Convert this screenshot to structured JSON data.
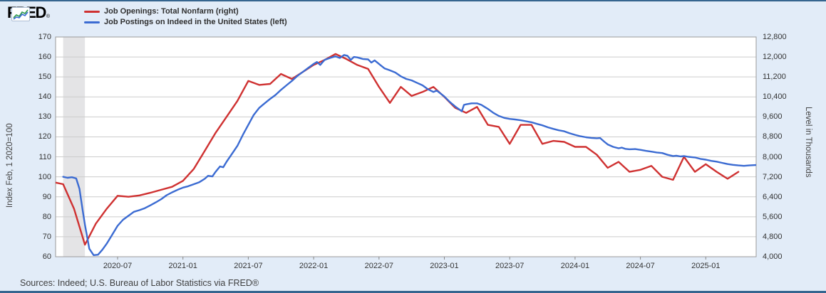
{
  "header": {
    "logo_text": "FRED",
    "logo_reg_mark": "®",
    "legend": [
      {
        "label": "Job Openings: Total Nonfarm (right)",
        "color": "#cf3131"
      },
      {
        "label": "Job Postings on Indeed in the United States (left)",
        "color": "#3b6bd2"
      }
    ]
  },
  "footer": {
    "sources": "Sources: Indeed; U.S. Bureau of Labor Statistics via FRED®"
  },
  "chart_data": {
    "type": "line",
    "left_axis": {
      "title": "Index Feb, 1 2020=100",
      "range": [
        60,
        170
      ],
      "ticks": [
        "170",
        "160",
        "150",
        "140",
        "130",
        "120",
        "110",
        "100",
        "90",
        "80",
        "70",
        "60"
      ]
    },
    "right_axis": {
      "title": "Level in Thousands",
      "range": [
        4000,
        12800
      ],
      "ticks": [
        "12,800",
        "12,000",
        "11,200",
        "10,400",
        "9,600",
        "8,800",
        "8,000",
        "7,200",
        "6,400",
        "5,600",
        "4,800",
        "4,000"
      ]
    },
    "x_axis": {
      "tick_labels": [
        "2020-07",
        "2021-01",
        "2021-07",
        "2022-01",
        "2022-07",
        "2023-01",
        "2023-07",
        "2024-01",
        "2024-07",
        "2025-01"
      ],
      "tick_month_index": [
        6,
        12,
        18,
        24,
        30,
        36,
        42,
        48,
        54,
        60
      ],
      "month_index_note": "month index 0 = 2020-01"
    },
    "recession_band": {
      "start_month_index": 1,
      "end_month_index": 3,
      "color": "#e4e4e6"
    },
    "grid": true,
    "legend_position": "top-left",
    "series": [
      {
        "name": "Job Openings: Total Nonfarm (right)",
        "axis": "right",
        "units": "thousands",
        "color": "#cf3131",
        "data": [
          [
            0,
            7000
          ],
          [
            1,
            6904
          ],
          [
            2,
            5920
          ],
          [
            3,
            4480
          ],
          [
            4,
            5320
          ],
          [
            5,
            5920
          ],
          [
            6,
            6440
          ],
          [
            7,
            6400
          ],
          [
            8,
            6456
          ],
          [
            9,
            6560
          ],
          [
            10,
            6680
          ],
          [
            11,
            6800
          ],
          [
            12,
            7040
          ],
          [
            13,
            7520
          ],
          [
            14,
            8240
          ],
          [
            15,
            8960
          ],
          [
            16,
            9600
          ],
          [
            17,
            10240
          ],
          [
            18,
            11040
          ],
          [
            19,
            10880
          ],
          [
            20,
            10920
          ],
          [
            21,
            11320
          ],
          [
            22,
            11120
          ],
          [
            23,
            11400
          ],
          [
            24,
            11680
          ],
          [
            25,
            11880
          ],
          [
            26,
            12120
          ],
          [
            27,
            11920
          ],
          [
            28,
            11680
          ],
          [
            29,
            11520
          ],
          [
            30,
            10800
          ],
          [
            31,
            10160
          ],
          [
            32,
            10800
          ],
          [
            33,
            10440
          ],
          [
            34,
            10600
          ],
          [
            35,
            10800
          ],
          [
            36,
            10400
          ],
          [
            37,
            9960
          ],
          [
            38,
            9760
          ],
          [
            39,
            10000
          ],
          [
            40,
            9280
          ],
          [
            41,
            9200
          ],
          [
            42,
            8520
          ],
          [
            43,
            9280
          ],
          [
            44,
            9280
          ],
          [
            45,
            8520
          ],
          [
            46,
            8640
          ],
          [
            47,
            8600
          ],
          [
            48,
            8400
          ],
          [
            49,
            8400
          ],
          [
            50,
            8080
          ],
          [
            51,
            7560
          ],
          [
            52,
            7800
          ],
          [
            53,
            7400
          ],
          [
            54,
            7480
          ],
          [
            55,
            7640
          ],
          [
            56,
            7200
          ],
          [
            57,
            7080
          ],
          [
            58,
            8000
          ],
          [
            59,
            7400
          ],
          [
            60,
            7704
          ],
          [
            61,
            7400
          ],
          [
            62,
            7120
          ],
          [
            63,
            7400
          ]
        ]
      },
      {
        "name": "Job Postings on Indeed in the United States (left)",
        "axis": "left",
        "units": "index",
        "color": "#3b6bd2",
        "data": [
          [
            1,
            100
          ],
          [
            1.4,
            99.5
          ],
          [
            1.8,
            99.8
          ],
          [
            2.2,
            99.2
          ],
          [
            2.5,
            94
          ],
          [
            2.8,
            83
          ],
          [
            3,
            76
          ],
          [
            3.4,
            64
          ],
          [
            3.8,
            60.8
          ],
          [
            4.2,
            61
          ],
          [
            4.6,
            63.5
          ],
          [
            5,
            66.5
          ],
          [
            5.5,
            71
          ],
          [
            6,
            75.5
          ],
          [
            6.5,
            78.5
          ],
          [
            7,
            80.5
          ],
          [
            7.5,
            82.5
          ],
          [
            8,
            83.3
          ],
          [
            8.5,
            84.3
          ],
          [
            9,
            85.7
          ],
          [
            9.5,
            87.2
          ],
          [
            10,
            88.8
          ],
          [
            10.5,
            90.8
          ],
          [
            11,
            92.2
          ],
          [
            11.5,
            93.5
          ],
          [
            12,
            94.6
          ],
          [
            12.5,
            95.3
          ],
          [
            13,
            96.3
          ],
          [
            13.5,
            97.3
          ],
          [
            14,
            99
          ],
          [
            14.3,
            100.5
          ],
          [
            14.7,
            100.2
          ],
          [
            15,
            102.5
          ],
          [
            15.4,
            105.2
          ],
          [
            15.7,
            104.8
          ],
          [
            16,
            107.5
          ],
          [
            16.5,
            111.5
          ],
          [
            17,
            115.5
          ],
          [
            17.5,
            121
          ],
          [
            18,
            126
          ],
          [
            18.5,
            131
          ],
          [
            19,
            134.5
          ],
          [
            19.5,
            136.8
          ],
          [
            20,
            139
          ],
          [
            20.5,
            141
          ],
          [
            21,
            143.5
          ],
          [
            21.5,
            145.8
          ],
          [
            22,
            148
          ],
          [
            22.5,
            150.5
          ],
          [
            23,
            152.5
          ],
          [
            23.5,
            154.5
          ],
          [
            24,
            156.5
          ],
          [
            24.3,
            157.5
          ],
          [
            24.6,
            156
          ],
          [
            25,
            158.5
          ],
          [
            25.5,
            159.5
          ],
          [
            26,
            160.3
          ],
          [
            26.4,
            159.5
          ],
          [
            26.8,
            161
          ],
          [
            27.1,
            160.6
          ],
          [
            27.4,
            158.5
          ],
          [
            27.7,
            160
          ],
          [
            28,
            159.8
          ],
          [
            28.5,
            159
          ],
          [
            29,
            158.8
          ],
          [
            29.3,
            157.2
          ],
          [
            29.6,
            158.3
          ],
          [
            30,
            156.5
          ],
          [
            30.5,
            154.3
          ],
          [
            31,
            153.3
          ],
          [
            31.5,
            152.2
          ],
          [
            32,
            150.3
          ],
          [
            32.5,
            149
          ],
          [
            33,
            148.3
          ],
          [
            33.5,
            147
          ],
          [
            34,
            145.8
          ],
          [
            34.5,
            143.8
          ],
          [
            35,
            142.5
          ],
          [
            35.3,
            143.2
          ],
          [
            35.7,
            141.5
          ],
          [
            36,
            140.2
          ],
          [
            36.5,
            137.5
          ],
          [
            37,
            135.2
          ],
          [
            37.3,
            134
          ],
          [
            37.6,
            132.8
          ],
          [
            37.8,
            136
          ],
          [
            38,
            136.3
          ],
          [
            38.5,
            136.8
          ],
          [
            39,
            136.8
          ],
          [
            39.4,
            136
          ],
          [
            39.7,
            135
          ],
          [
            40,
            134
          ],
          [
            40.5,
            132
          ],
          [
            41,
            130.5
          ],
          [
            41.5,
            129.5
          ],
          [
            42,
            129
          ],
          [
            42.5,
            128.7
          ],
          [
            43,
            128.3
          ],
          [
            43.5,
            127.8
          ],
          [
            44,
            127.3
          ],
          [
            44.5,
            126.5
          ],
          [
            45,
            125.8
          ],
          [
            45.5,
            124.8
          ],
          [
            46,
            124
          ],
          [
            46.5,
            123.3
          ],
          [
            47,
            122.8
          ],
          [
            47.5,
            121.8
          ],
          [
            48,
            121
          ],
          [
            48.5,
            120.3
          ],
          [
            49,
            119.8
          ],
          [
            49.5,
            119.5
          ],
          [
            50,
            119.3
          ],
          [
            50.3,
            119.4
          ],
          [
            50.7,
            117.5
          ],
          [
            51,
            116.2
          ],
          [
            51.5,
            115
          ],
          [
            52,
            114.3
          ],
          [
            52.3,
            114.6
          ],
          [
            52.6,
            114
          ],
          [
            53,
            113.8
          ],
          [
            53.5,
            113.9
          ],
          [
            54,
            113.5
          ],
          [
            54.5,
            113
          ],
          [
            55,
            112.6
          ],
          [
            55.5,
            112.2
          ],
          [
            56,
            111.9
          ],
          [
            56.5,
            111
          ],
          [
            57,
            110.4
          ],
          [
            57.3,
            110.6
          ],
          [
            57.7,
            110.2
          ],
          [
            58,
            110.4
          ],
          [
            58.4,
            110
          ],
          [
            59,
            109.7
          ],
          [
            59.5,
            109
          ],
          [
            60,
            108.6
          ],
          [
            60.5,
            108
          ],
          [
            61,
            107.6
          ],
          [
            61.5,
            107
          ],
          [
            62,
            106.4
          ],
          [
            62.5,
            106
          ],
          [
            63,
            105.7
          ],
          [
            63.5,
            105.5
          ],
          [
            64,
            105.7
          ],
          [
            64.6,
            105.9
          ]
        ]
      }
    ],
    "colors": {
      "background": "#e2ecf8",
      "plot_background": "#ffffff",
      "gridline": "#cccccc",
      "plot_border": "#9a9a9a",
      "frame_border": "#35658f"
    }
  }
}
